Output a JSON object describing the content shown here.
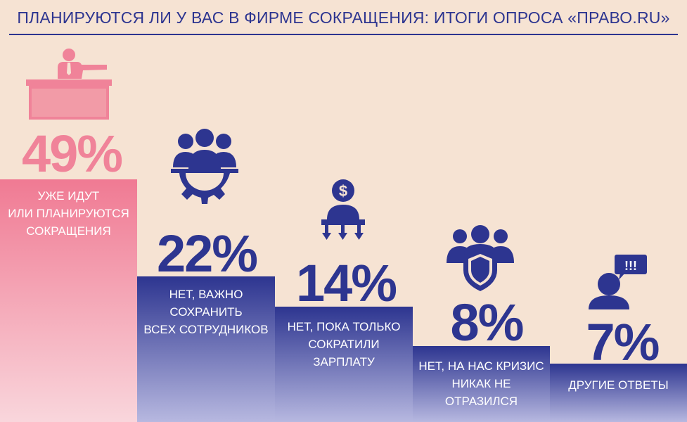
{
  "title": "ПЛАНИРУЮТСЯ ЛИ У ВАС В ФИРМЕ СОКРАЩЕНИЯ: ИТОГИ ОПРОСА «ПРАВО.RU»",
  "colors": {
    "accent_pink": "#f08399",
    "accent_blue": "#2d3590",
    "background": "#f6e3d3"
  },
  "chart_data": {
    "type": "bar",
    "title": "ПЛАНИРУЮТСЯ ЛИ У ВАС В ФИРМЕ СОКРАЩЕНИЯ: ИТОГИ ОПРОСА «ПРАВО.RU»",
    "categories": [
      "УЖЕ ИДУТ ИЛИ ПЛАНИРУЮТСЯ СОКРАЩЕНИЯ",
      "НЕТ, ВАЖНО СОХРАНИТЬ ВСЕХ СОТРУДНИКОВ",
      "НЕТ, ПОКА ТОЛЬКО СОКРАТИЛИ ЗАРПЛАТУ",
      "НЕТ, НА НАС КРИЗИС НИКАК НЕ ОТРАЗИЛСЯ",
      "ДРУГИЕ ОТВЕТЫ"
    ],
    "values": [
      49,
      22,
      14,
      8,
      7
    ],
    "unit": "%",
    "bars": [
      {
        "value_label": "49%",
        "label_lines": [
          "УЖЕ ИДУТ",
          "ИЛИ ПЛАНИРУЮТСЯ",
          "СОКРАЩЕНИЯ"
        ],
        "color": "#f08399",
        "icon": "boss-at-desk-icon"
      },
      {
        "value_label": "22%",
        "label_lines": [
          "НЕТ, ВАЖНО",
          "СОХРАНИТЬ",
          "ВСЕХ СОТРУДНИКОВ"
        ],
        "color": "#2d3590",
        "icon": "team-gear-icon"
      },
      {
        "value_label": "14%",
        "label_lines": [
          "НЕТ, ПОКА ТОЛЬКО",
          "СОКРАТИЛИ",
          "ЗАРПЛАТУ"
        ],
        "color": "#2d3590",
        "icon": "salary-cut-icon"
      },
      {
        "value_label": "8%",
        "label_lines": [
          "НЕТ, НА НАС КРИЗИС",
          "НИКАК НЕ",
          "ОТРАЗИЛСЯ"
        ],
        "color": "#2d3590",
        "icon": "team-shield-icon"
      },
      {
        "value_label": "7%",
        "label_lines": [
          "ДРУГИЕ ОТВЕТЫ"
        ],
        "color": "#2d3590",
        "icon": "person-speech-icon"
      }
    ],
    "speech_bubble_text": "!!!",
    "grid": false,
    "legend": "none"
  }
}
